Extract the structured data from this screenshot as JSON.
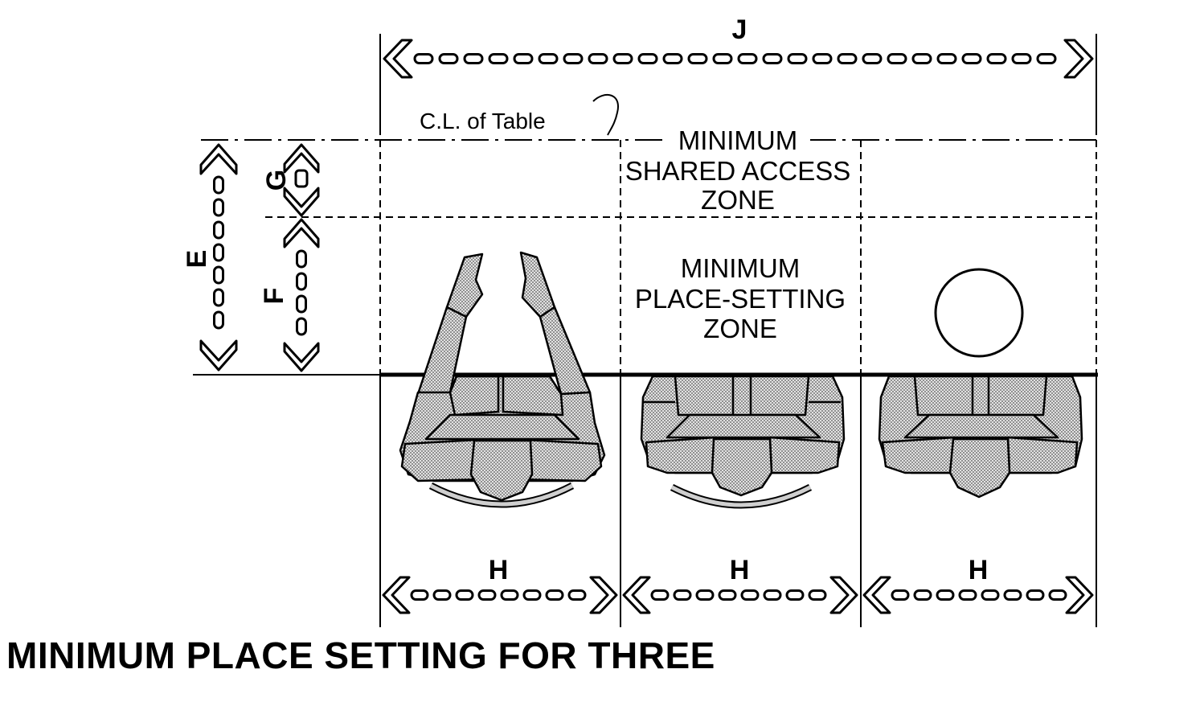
{
  "title": "MINIMUM PLACE SETTING FOR THREE",
  "dimensions": {
    "overall_width": "J",
    "shared_plus_setting_depth": "E",
    "shared_access_depth": "G",
    "place_setting_depth": "F",
    "per_person_width": "H"
  },
  "annotations": {
    "centerline": "C.L. of Table"
  },
  "zones": {
    "shared_access": [
      "MINIMUM",
      "SHARED ACCESS",
      "ZONE"
    ],
    "place_setting": [
      "MINIMUM",
      "PLACE-SETTING",
      "ZONE"
    ]
  },
  "seats": {
    "count": 3,
    "seat_1": "person reaching forward with both arms",
    "seat_2": "seated person",
    "seat_3": "seated person with plate"
  },
  "colors": {
    "ink": "#000000",
    "figure_fill": "#bdbdbd",
    "background": "#ffffff"
  }
}
